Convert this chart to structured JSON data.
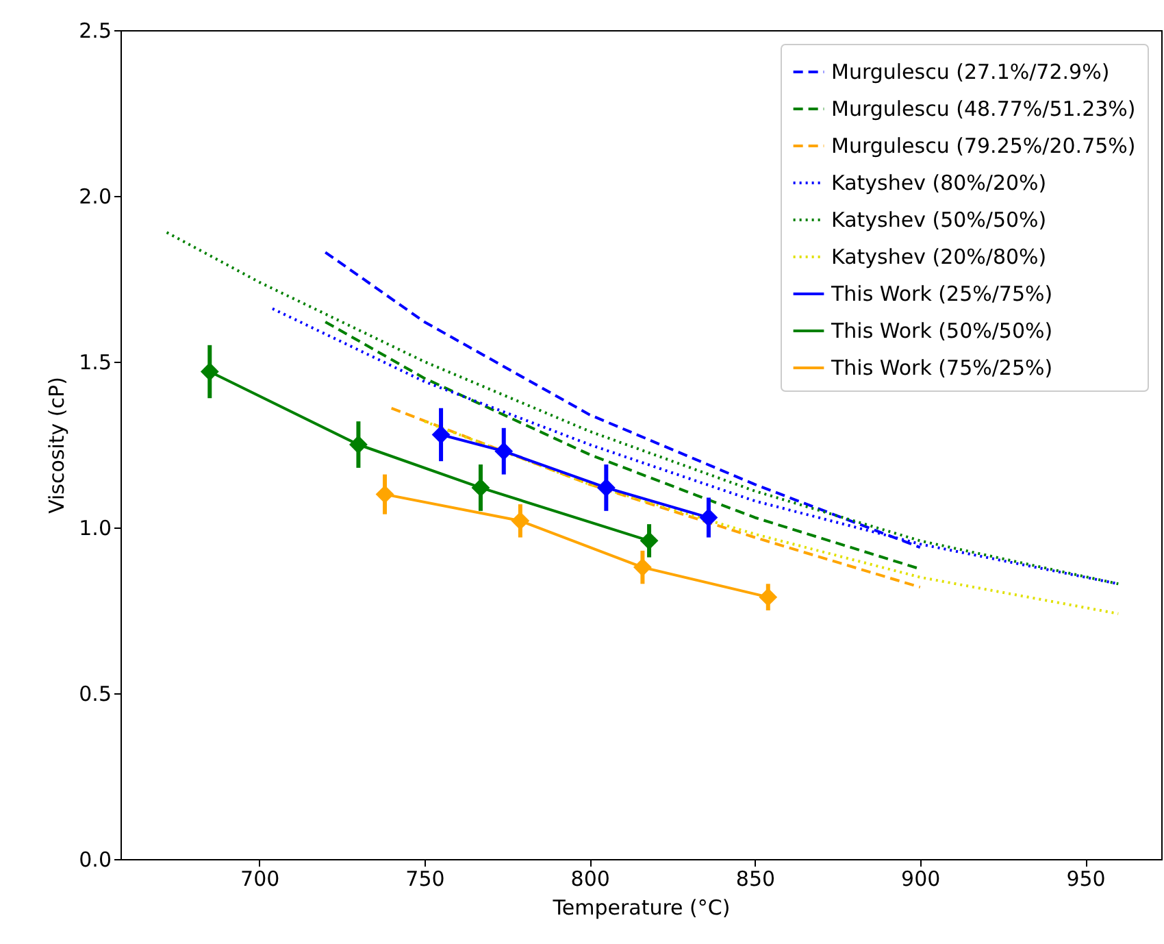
{
  "chart_data": {
    "type": "line",
    "xlabel": "Temperature (°C)",
    "ylabel": "Viscosity (cP)",
    "xlim": [
      658,
      973
    ],
    "xticks": [
      700,
      750,
      800,
      850,
      900,
      950
    ],
    "ylim": [
      0,
      2.5
    ],
    "yticks": [
      {
        "value": 0,
        "label": "0.0"
      },
      {
        "value": 0.5,
        "label": "0.5"
      },
      {
        "value": 1,
        "label": "1.0"
      },
      {
        "value": 1.5,
        "label": "1.5"
      },
      {
        "value": 2,
        "label": "2.0"
      },
      {
        "value": 2.5,
        "label": "2.5"
      }
    ],
    "grid": false,
    "legend": "top right",
    "series": [
      {
        "name": "Murgulescu (27.1%/72.9%)",
        "color": "#0000ff",
        "line_style": "dashed",
        "marker": "none",
        "x": [
          720,
          750,
          800,
          850,
          900
        ],
        "values": [
          1.83,
          1.62,
          1.34,
          1.13,
          0.94
        ]
      },
      {
        "name": "Murgulescu (48.77%/51.23%)",
        "color": "#008000",
        "line_style": "dashed",
        "marker": "none",
        "x": [
          720,
          750,
          800,
          850,
          900
        ],
        "values": [
          1.62,
          1.45,
          1.22,
          1.03,
          0.875
        ]
      },
      {
        "name": "Murgulescu (79.25%/20.75%)",
        "color": "#ffa500",
        "line_style": "dashed",
        "marker": "none",
        "x": [
          740,
          800,
          850,
          900
        ],
        "values": [
          1.36,
          1.13,
          0.97,
          0.82
        ]
      },
      {
        "name": "Katyshev (80%/20%)",
        "color": "#0000ff",
        "line_style": "dotted",
        "marker": "none",
        "x": [
          704,
          750,
          800,
          850,
          900,
          960
        ],
        "values": [
          1.66,
          1.44,
          1.25,
          1.08,
          0.95,
          0.83
        ]
      },
      {
        "name": "Katyshev (50%/50%)",
        "color": "#008000",
        "line_style": "dotted",
        "marker": "none",
        "x": [
          672,
          700,
          750,
          800,
          850,
          900,
          960
        ],
        "values": [
          1.89,
          1.74,
          1.5,
          1.29,
          1.11,
          0.96,
          0.83
        ]
      },
      {
        "name": "Katyshev (20%/80%)",
        "color": "#e0e000",
        "line_style": "dotted",
        "marker": "none",
        "x": [
          750,
          800,
          850,
          900,
          960
        ],
        "values": [
          1.32,
          1.13,
          0.98,
          0.85,
          0.74
        ]
      },
      {
        "name": "This Work (25%/75%)",
        "color": "#0000ff",
        "line_style": "solid",
        "marker": "diamond",
        "x": [
          755,
          774,
          805,
          836
        ],
        "values": [
          1.28,
          1.23,
          1.12,
          1.03
        ],
        "errors": [
          0.08,
          0.07,
          0.07,
          0.06
        ]
      },
      {
        "name": "This Work (50%/50%)",
        "color": "#008000",
        "line_style": "solid",
        "marker": "diamond",
        "x": [
          685,
          730,
          767,
          818
        ],
        "values": [
          1.47,
          1.25,
          1.12,
          0.96
        ],
        "errors": [
          0.08,
          0.07,
          0.07,
          0.05
        ]
      },
      {
        "name": "This Work (75%/25%)",
        "color": "#ffa500",
        "line_style": "solid",
        "marker": "diamond",
        "x": [
          738,
          779,
          816,
          854
        ],
        "values": [
          1.1,
          1.02,
          0.88,
          0.79
        ],
        "errors": [
          0.06,
          0.05,
          0.05,
          0.04
        ]
      }
    ]
  }
}
